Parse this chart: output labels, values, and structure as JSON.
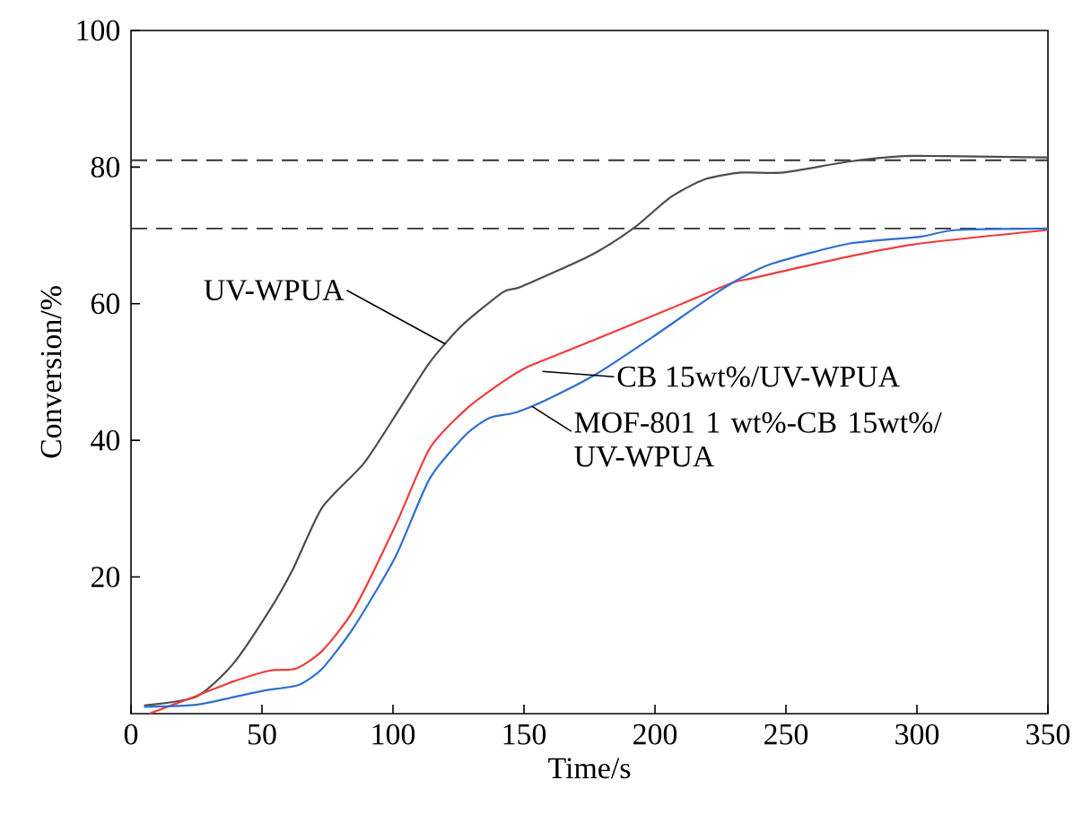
{
  "chart_data": {
    "type": "line",
    "xlabel": "Time/s",
    "ylabel": "Conversion/%",
    "xlim": [
      0,
      350
    ],
    "ylim": [
      0,
      100
    ],
    "xticks": [
      0,
      50,
      100,
      150,
      200,
      250,
      300,
      350
    ],
    "yticks": [
      20,
      40,
      60,
      80,
      100
    ],
    "series": [
      {
        "color": "#4d4d4d",
        "x": [
          5,
          25,
          39,
          53,
          62,
          73,
          89,
          103,
          114,
          126,
          142,
          149,
          176,
          192,
          206,
          219,
          233,
          249,
          274,
          295,
          311,
          350
        ],
        "values": [
          1.2,
          2.5,
          7.3,
          15.2,
          21.3,
          30.2,
          36.7,
          44.9,
          51.4,
          56.7,
          61.7,
          62.5,
          67.2,
          71.1,
          75.6,
          78.2,
          79.2,
          79.2,
          80.8,
          81.6,
          81.6,
          81.4
        ]
      },
      {
        "color": "#f03c3c",
        "x": [
          7,
          25,
          39,
          53,
          63,
          73,
          85,
          101,
          114,
          128,
          142,
          151,
          171,
          206,
          229,
          238,
          274,
          301,
          350
        ],
        "values": [
          0,
          2.6,
          4.7,
          6.3,
          6.6,
          9.2,
          15.2,
          27.6,
          38.8,
          44.6,
          48.6,
          50.7,
          53.8,
          59.3,
          63,
          63.8,
          66.9,
          68.8,
          70.8
        ]
      },
      {
        "color": "#2e6fd0",
        "x": [
          5,
          25,
          39,
          51,
          64,
          73,
          85,
          101,
          114,
          128,
          137,
          147,
          160,
          178,
          199,
          222,
          233,
          245,
          274,
          301,
          315,
          350
        ],
        "values": [
          1.0,
          1.3,
          2.4,
          3.4,
          4.2,
          6.6,
          12.6,
          23,
          34.4,
          40.9,
          43.3,
          44.1,
          46.2,
          49.8,
          55.1,
          61.2,
          63.8,
          65.9,
          68.8,
          69.8,
          70.8,
          71
        ]
      }
    ],
    "ref_lines": [
      {
        "axis": "y",
        "value": 81,
        "color": "#333333",
        "line_style": "dashed"
      },
      {
        "axis": "y",
        "value": 71,
        "color": "#333333",
        "line_style": "dashed"
      }
    ],
    "annotations": [
      {
        "text": "UV-WPUA",
        "x": 120,
        "y": 54.1
      },
      {
        "text": "CB 15wt%/UV-WPUA",
        "x": 157,
        "y": 50.1
      },
      {
        "text": "MOF-801 1 wt%-CB 15wt%/ UV-WPUA",
        "x": 153,
        "y": 45
      }
    ]
  }
}
